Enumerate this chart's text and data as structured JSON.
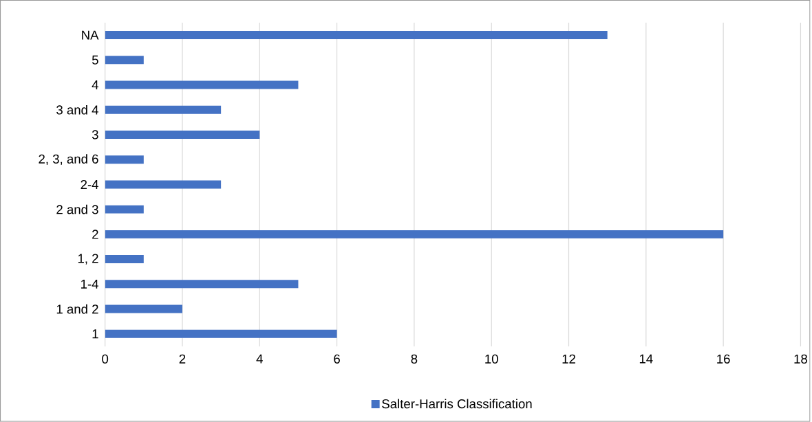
{
  "chart_data": {
    "type": "bar",
    "orientation": "horizontal",
    "categories": [
      "NA",
      "5",
      "4",
      "3 and 4",
      "3",
      "2, 3, and 6",
      "2-4",
      "2 and 3",
      "2",
      "1, 2",
      "1-4",
      "1 and 2",
      "1"
    ],
    "series": [
      {
        "name": "Salter-Harris Classification",
        "color": "#4472c4",
        "values": [
          13,
          1,
          5,
          3,
          4,
          1,
          3,
          1,
          16,
          1,
          5,
          2,
          6
        ]
      }
    ],
    "xlim": [
      0,
      18
    ],
    "xticks": [
      0,
      2,
      4,
      6,
      8,
      10,
      12,
      14,
      16,
      18
    ],
    "grid": "x",
    "legend": "bottom"
  }
}
